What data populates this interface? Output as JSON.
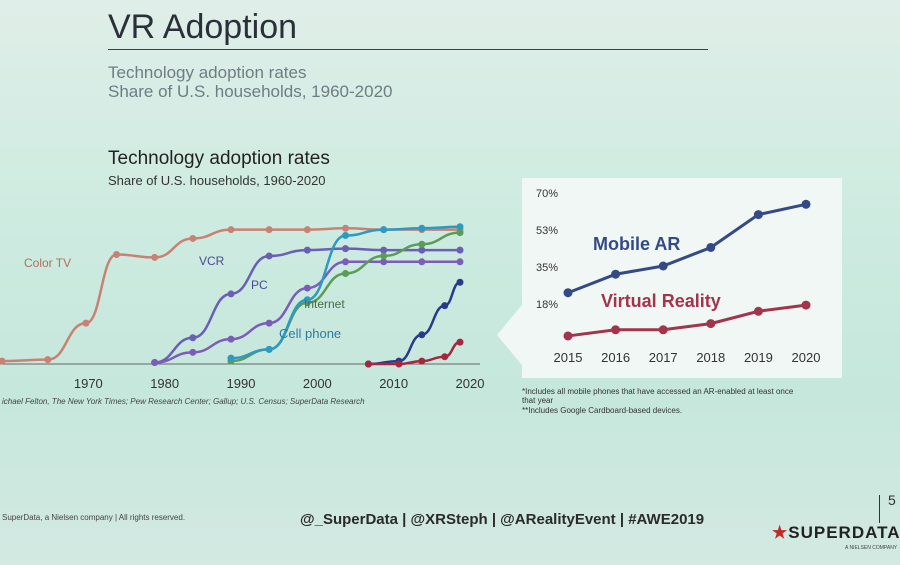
{
  "slide": {
    "title": "VR Adoption",
    "subtitle_line1": "Technology adoption rates",
    "subtitle_line2": "Share of U.S. households, 1960-2020",
    "page_number": "5"
  },
  "left_chart_header": {
    "title": "Technology adoption rates",
    "subtitle": "Share of U.S. households, 1960-2020"
  },
  "source_text": "ichael Felton, The New York Times; Pew Research Center; Gallup; U.S. Census; SuperData Research",
  "footnotes": {
    "line1": "*Includes all mobile phones that have accessed an AR-enabled at least once",
    "line2": "that year",
    "line3": "**Includes Google Cardboard-based devices."
  },
  "footer": {
    "left": "SuperData, a Nielsen company | All rights reserved.",
    "handles": "@_SuperData  |  @XRSteph  |  @ARealityEvent  |  #AWE2019",
    "brand_star": "★",
    "brand": "SUPERDATA",
    "brand_sub": "A NIELSEN COMPANY"
  },
  "colors": {
    "color_tv": "#c98173",
    "vcr": "#6a5fb4",
    "pc": "#7c5cb8",
    "internet": "#5b9c58",
    "cell_phone": "#2e9ac2",
    "late_series_1": "#283a8c",
    "late_series_2": "#a8263d",
    "mobile_ar": "#344a86",
    "virtual_reality": "#a3344d"
  },
  "chart_data": [
    {
      "type": "line",
      "title": "Technology adoption rates",
      "subtitle": "Share of U.S. households, 1960-2020",
      "xlim": [
        1960,
        2022
      ],
      "ylim": [
        0,
        100
      ],
      "x_ticks": [
        "1970",
        "1980",
        "1990",
        "2000",
        "2010",
        "2020"
      ],
      "series": [
        {
          "name": "Color TV",
          "x": [
            1960,
            1966,
            1971,
            1975,
            1980,
            1985,
            1990,
            1995,
            2000,
            2005,
            2010,
            2015,
            2020
          ],
          "values": [
            2,
            3,
            28,
            75,
            73,
            86,
            92,
            92,
            92,
            93,
            92,
            92,
            92
          ]
        },
        {
          "name": "VCR",
          "x": [
            1980,
            1985,
            1990,
            1995,
            2000,
            2005,
            2010,
            2015,
            2020
          ],
          "values": [
            1,
            18,
            48,
            74,
            78,
            79,
            78,
            78,
            78
          ]
        },
        {
          "name": "PC",
          "x": [
            1980,
            1985,
            1990,
            1995,
            2000,
            2005,
            2010,
            2015,
            2020
          ],
          "values": [
            1,
            8,
            17,
            28,
            52,
            70,
            70,
            70,
            70
          ]
        },
        {
          "name": "Internet",
          "x": [
            1990,
            1995,
            2000,
            2005,
            2010,
            2015,
            2020
          ],
          "values": [
            2,
            10,
            42,
            62,
            74,
            82,
            90
          ]
        },
        {
          "name": "Cell phone",
          "x": [
            1990,
            1995,
            2000,
            2005,
            2010,
            2015,
            2020
          ],
          "values": [
            4,
            10,
            44,
            88,
            92,
            93,
            94
          ]
        },
        {
          "name": "",
          "x": [
            2008,
            2012,
            2015,
            2018,
            2020
          ],
          "values": [
            0,
            2,
            20,
            40,
            56
          ]
        },
        {
          "name": "",
          "x": [
            2008,
            2012,
            2015,
            2018,
            2020
          ],
          "values": [
            0,
            0,
            2,
            5,
            15
          ]
        }
      ]
    },
    {
      "type": "line",
      "categories": [
        "2015",
        "2016",
        "2017",
        "2018",
        "2019",
        "2020"
      ],
      "y_ticks": [
        "70%",
        "53%",
        "35%",
        "18%"
      ],
      "ylim": [
        0,
        70
      ],
      "series": [
        {
          "name": "Mobile AR",
          "values": [
            22,
            31,
            35,
            44,
            60,
            65
          ]
        },
        {
          "name": "Virtual Reality",
          "values": [
            1,
            4,
            4,
            7,
            13,
            16
          ]
        }
      ]
    }
  ]
}
